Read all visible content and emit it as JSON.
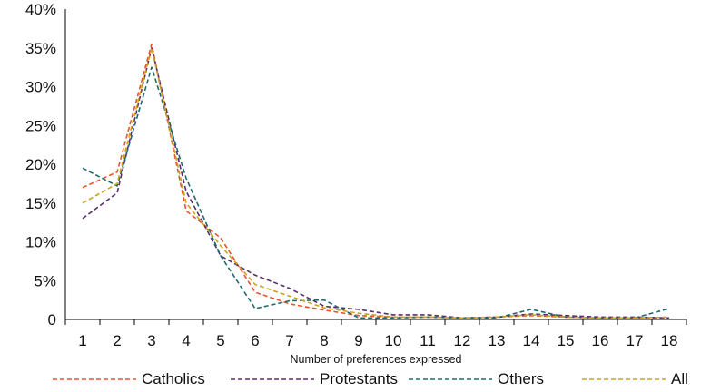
{
  "chart_data": {
    "type": "line",
    "title": "",
    "xlabel": "Number of preferences expressed",
    "ylabel": "",
    "x": [
      1,
      2,
      3,
      4,
      5,
      6,
      7,
      8,
      9,
      10,
      11,
      12,
      13,
      14,
      15,
      16,
      17,
      18
    ],
    "x_tick_labels": [
      "1",
      "2",
      "3",
      "4",
      "5",
      "6",
      "7",
      "8",
      "9",
      "10",
      "11",
      "12",
      "13",
      "14",
      "15",
      "16",
      "17",
      "18"
    ],
    "y_tick_labels": [
      "0",
      "5%",
      "10%",
      "15%",
      "20%",
      "25%",
      "30%",
      "35%",
      "40%"
    ],
    "ylim": [
      0,
      40
    ],
    "grid": false,
    "legend_position": "bottom",
    "series": [
      {
        "name": "Catholics",
        "color": "#e8542a",
        "dash": "dashed",
        "values": [
          17.0,
          19.0,
          35.5,
          14.0,
          10.5,
          3.5,
          2.0,
          1.2,
          0.5,
          0.3,
          0.3,
          0.2,
          0.3,
          0.5,
          0.3,
          0.2,
          0.2,
          0.2
        ]
      },
      {
        "name": "Protestants",
        "color": "#5a2d6e",
        "dash": "dashed",
        "values": [
          13.0,
          16.3,
          35.0,
          16.5,
          8.2,
          5.7,
          4.0,
          1.7,
          1.3,
          0.6,
          0.6,
          0.2,
          0.3,
          0.7,
          0.5,
          0.3,
          0.3,
          0.2
        ]
      },
      {
        "name": "Others",
        "color": "#1e6b6b",
        "dash": "dashed",
        "values": [
          19.5,
          17.2,
          32.5,
          18.2,
          8.2,
          1.4,
          2.4,
          2.5,
          0.2,
          0.2,
          0.3,
          0.2,
          0.2,
          1.3,
          0.3,
          0.2,
          0.2,
          1.4
        ]
      },
      {
        "name": "All",
        "color": "#c9a31e",
        "dash": "dashed",
        "values": [
          15.0,
          17.5,
          35.0,
          15.0,
          9.5,
          4.5,
          3.0,
          1.5,
          0.8,
          0.3,
          0.3,
          0.2,
          0.3,
          0.6,
          0.3,
          0.2,
          0.2,
          0.3
        ]
      }
    ]
  }
}
